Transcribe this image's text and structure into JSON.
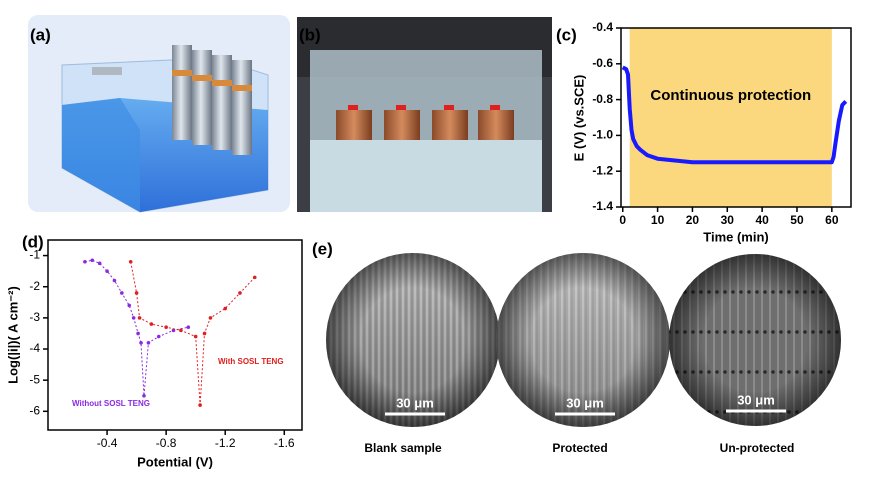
{
  "panel_labels": [
    "(a)",
    "(b)",
    "(c)",
    "(d)",
    "(e)"
  ],
  "chart_data": [
    {
      "type": "line",
      "xlabel": "Time (min)",
      "ylabel": "E (V) (vs.SCE)",
      "annotation": "Continuous protection",
      "highlight_x": [
        2,
        60
      ],
      "highlight_color": "#fbd77e",
      "x": [
        0,
        1,
        1.5,
        2,
        2.5,
        3,
        4,
        5,
        7,
        10,
        15,
        20,
        30,
        40,
        50,
        60,
        60.5,
        61,
        62,
        63,
        64
      ],
      "values": [
        -0.62,
        -0.63,
        -0.66,
        -0.85,
        -0.97,
        -1.02,
        -1.06,
        -1.08,
        -1.11,
        -1.13,
        -1.14,
        -1.15,
        -1.15,
        -1.15,
        -1.15,
        -1.15,
        -1.12,
        -1.05,
        -0.92,
        -0.83,
        -0.81
      ],
      "color": "#1a1aff",
      "xlim": [
        -0.5,
        65.5
      ],
      "xticks": [
        0,
        10,
        20,
        30,
        40,
        50,
        60
      ],
      "ylim": [
        -1.4,
        -0.4
      ],
      "yticks": [
        -1.4,
        -1.2,
        {
          "value": -1,
          "label": "-1.0"
        },
        -0.8,
        -0.6,
        -0.4
      ]
    },
    {
      "type": "line",
      "xlabel": "Potential (V)",
      "ylabel": "Log(|i|)( A cm⁻²)",
      "series": [
        {
          "name": "Without SOSL TENG",
          "color": "#8a2be2",
          "x": [
            -0.25,
            -0.3,
            -0.35,
            -0.4,
            -0.45,
            -0.5,
            -0.55,
            -0.58,
            -0.61,
            -0.63,
            -0.65,
            -0.68,
            -0.75,
            -0.85,
            -0.95
          ],
          "values": [
            -1.2,
            -1.15,
            -1.25,
            -1.5,
            -1.8,
            -2.2,
            -2.6,
            -3.0,
            -3.5,
            -3.8,
            -5.5,
            -3.8,
            -3.6,
            -3.4,
            -3.3
          ]
        },
        {
          "name": "With SOSL TENG",
          "color": "#e02020",
          "x": [
            -0.56,
            -0.6,
            -0.62,
            -0.7,
            -0.8,
            -0.9,
            -1.0,
            -1.03,
            -1.06,
            -1.1,
            -1.2,
            -1.3,
            -1.4
          ],
          "values": [
            -1.2,
            -2.2,
            -3.0,
            -3.2,
            -3.3,
            -3.4,
            -3.6,
            -5.8,
            -3.5,
            -3.0,
            -2.7,
            -2.2,
            -1.7
          ]
        }
      ],
      "xlim": [
        0,
        -1.72
      ],
      "xticks": [
        -0.4,
        -0.8,
        -1.2,
        -1.6
      ],
      "ylim": [
        -6.6,
        -0.5
      ],
      "yticks": [
        -6,
        -5,
        -4,
        -3,
        -2,
        -1
      ]
    }
  ],
  "micrographs": [
    {
      "caption": "Blank sample",
      "scale_bar": "30 μm"
    },
    {
      "caption": "Protected",
      "scale_bar": "30 μm"
    },
    {
      "caption": "Un-protected",
      "scale_bar": "30 μm"
    }
  ]
}
